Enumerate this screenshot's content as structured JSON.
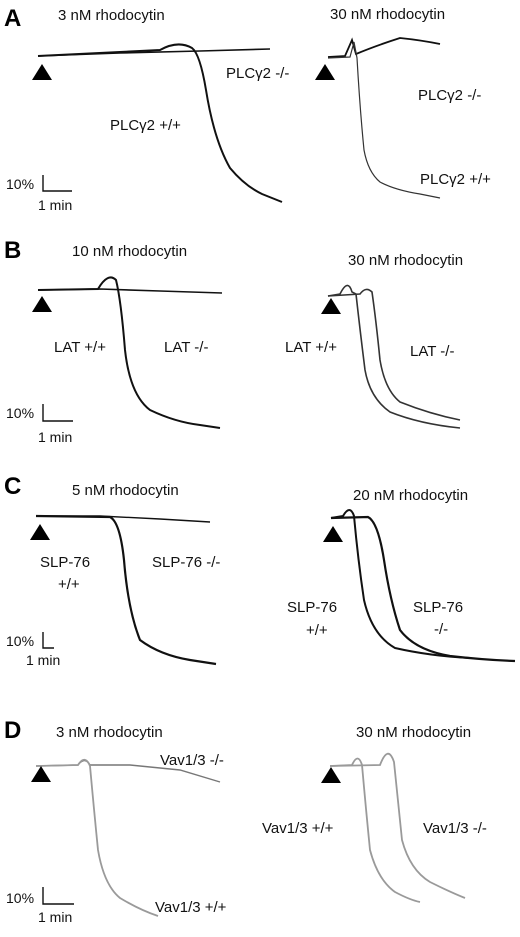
{
  "panels": [
    {
      "letter": "A",
      "left": {
        "title": "3 nM rhodocytin",
        "labels": [
          "PLCγ2 -/-",
          "PLCγ2 +/+"
        ]
      },
      "right": {
        "title": "30 nM rhodocytin",
        "labels": [
          "PLCγ2 -/-",
          "PLCγ2 +/+"
        ]
      },
      "scale": {
        "y": "10%",
        "x": "1 min"
      }
    },
    {
      "letter": "B",
      "left": {
        "title": "10 nM rhodocytin",
        "labels": [
          "LAT +/+",
          "LAT -/-"
        ]
      },
      "right": {
        "title": "30 nM rhodocytin",
        "labels": [
          "LAT +/+",
          "LAT -/-"
        ]
      },
      "scale": {
        "y": "10%",
        "x": "1 min"
      }
    },
    {
      "letter": "C",
      "left": {
        "title": "5 nM rhodocytin",
        "labels": [
          "SLP-76",
          "+/+",
          "SLP-76 -/-"
        ]
      },
      "right": {
        "title": "20 nM rhodocytin",
        "labels": [
          "SLP-76",
          "+/+",
          "SLP-76",
          "-/-"
        ]
      },
      "scale": {
        "y": "10%",
        "x": "1 min"
      }
    },
    {
      "letter": "D",
      "left": {
        "title": "3 nM rhodocytin",
        "labels": [
          "Vav1/3 -/-",
          "Vav1/3 +/+"
        ]
      },
      "right": {
        "title": "30 nM rhodocytin",
        "labels": [
          "Vav1/3 +/+",
          "Vav1/3 -/-"
        ]
      },
      "scale": {
        "y": "10%",
        "x": "1 min"
      }
    }
  ],
  "colors": {
    "trace": "#111111",
    "trace_light": "#8a8a8a",
    "marker": "#000000"
  }
}
